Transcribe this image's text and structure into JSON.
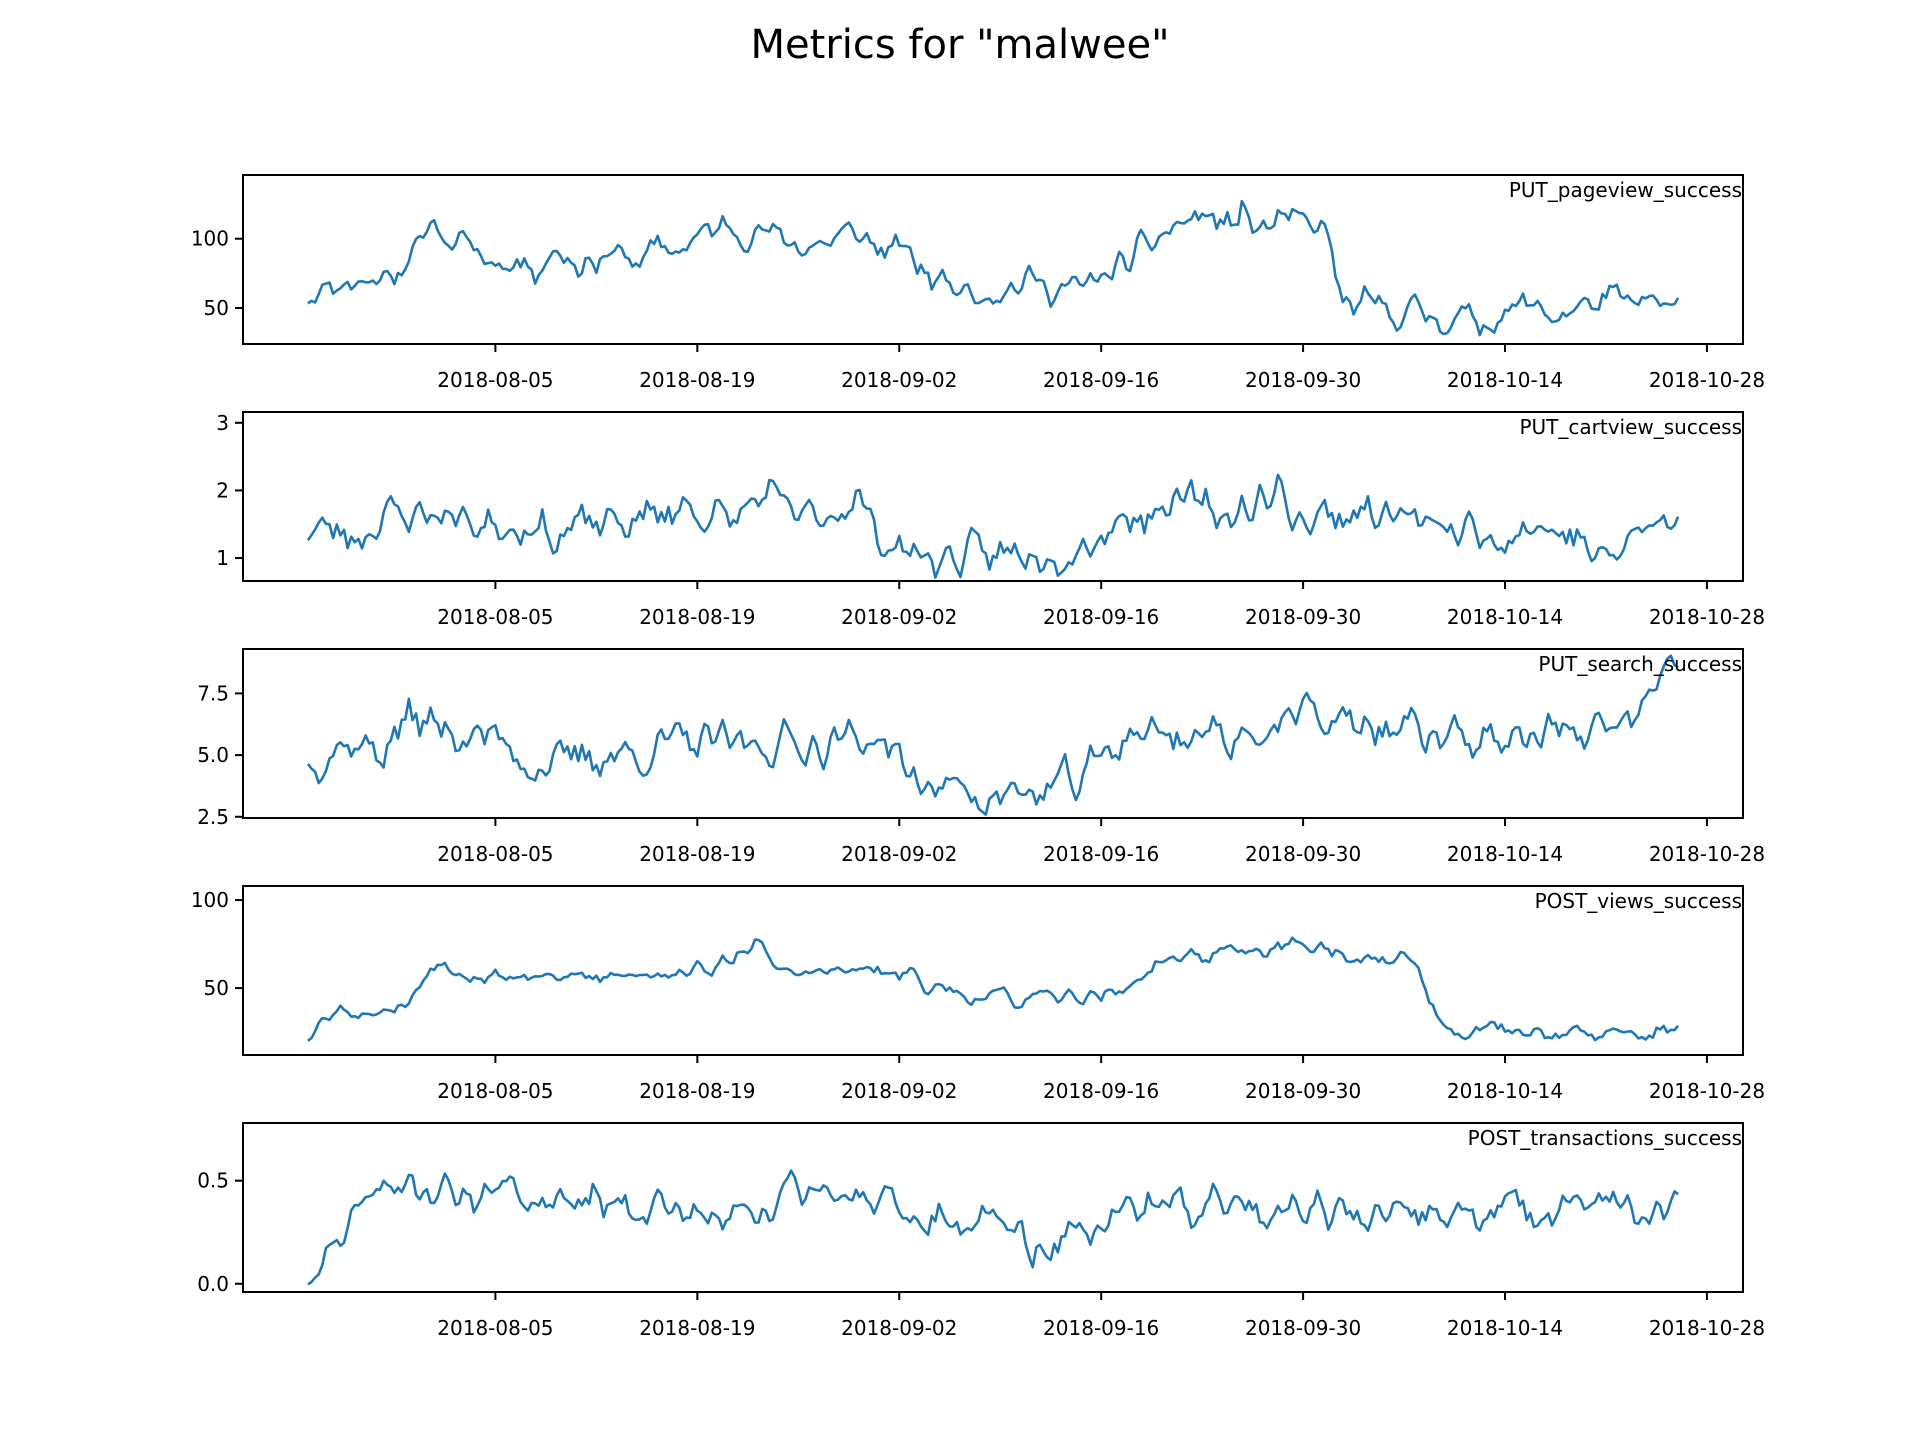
{
  "title": "Metrics for \"malwee\"",
  "line_color": "#1f77b4",
  "chart_data": [
    {
      "type": "line",
      "title": "PUT_pageview_success",
      "xlabel": "",
      "ylabel": "",
      "x_start": "2018-07-23",
      "x_end": "2018-10-26",
      "xlim_days": [
        -4.5,
        99.5
      ],
      "ylim": [
        24,
        146
      ],
      "xticks": [
        "2018-08-05",
        "2018-08-19",
        "2018-09-02",
        "2018-09-16",
        "2018-09-30",
        "2018-10-14",
        "2018-10-28"
      ],
      "yticks": [
        50,
        100
      ],
      "ytick_labels": [
        "50",
        "100"
      ],
      "legend": "top-right",
      "anchors": [
        [
          0,
          62
        ],
        [
          3,
          70
        ],
        [
          5,
          68
        ],
        [
          7,
          80
        ],
        [
          9,
          90
        ],
        [
          10,
          120
        ],
        [
          11,
          100
        ],
        [
          12,
          90
        ],
        [
          13,
          100
        ],
        [
          14,
          85
        ],
        [
          16,
          85
        ],
        [
          18,
          80
        ],
        [
          20,
          92
        ],
        [
          22,
          82
        ],
        [
          24,
          88
        ],
        [
          26,
          85
        ],
        [
          28,
          90
        ],
        [
          30,
          95
        ],
        [
          32,
          103
        ],
        [
          34,
          110
        ],
        [
          36,
          105
        ],
        [
          38,
          100
        ],
        [
          40,
          95
        ],
        [
          42,
          98
        ],
        [
          44,
          105
        ],
        [
          46,
          92
        ],
        [
          48,
          90
        ],
        [
          50,
          72
        ],
        [
          53,
          65
        ],
        [
          56,
          63
        ],
        [
          58,
          70
        ],
        [
          60,
          65
        ],
        [
          62,
          62
        ],
        [
          64,
          75
        ],
        [
          66,
          82
        ],
        [
          68,
          100
        ],
        [
          70,
          110
        ],
        [
          72,
          118
        ],
        [
          74,
          105
        ],
        [
          75,
          125
        ],
        [
          76,
          105
        ],
        [
          78,
          110
        ],
        [
          80,
          112
        ],
        [
          82,
          102
        ],
        [
          83,
          50
        ],
        [
          86,
          50
        ],
        [
          90,
          45
        ],
        [
          94,
          40
        ],
        [
          98,
          52
        ],
        [
          100,
          45
        ],
        [
          104,
          55
        ],
        [
          107,
          53
        ],
        [
          110,
          50
        ]
      ],
      "amplitude": 12,
      "seed": 11
    },
    {
      "type": "line",
      "title": "PUT_cartview_success",
      "xlabel": "",
      "ylabel": "",
      "x_start": "2018-07-23",
      "x_end": "2018-10-26",
      "xlim_days": [
        -4.5,
        99.5
      ],
      "ylim": [
        0.66,
        3.16
      ],
      "xticks": [
        "2018-08-05",
        "2018-08-19",
        "2018-09-02",
        "2018-09-16",
        "2018-09-30",
        "2018-10-14",
        "2018-10-28"
      ],
      "yticks": [
        1,
        2,
        3
      ],
      "ytick_labels": [
        "1",
        "2",
        "3"
      ],
      "legend": "top-right",
      "anchors": [
        [
          0,
          1.45
        ],
        [
          4,
          1.35
        ],
        [
          6,
          1.6
        ],
        [
          10,
          1.7
        ],
        [
          14,
          1.5
        ],
        [
          18,
          1.55
        ],
        [
          20,
          1.3
        ],
        [
          22,
          1.45
        ],
        [
          26,
          1.55
        ],
        [
          28,
          1.6
        ],
        [
          30,
          1.8
        ],
        [
          34,
          1.5
        ],
        [
          36,
          1.9
        ],
        [
          38,
          1.75
        ],
        [
          40,
          1.55
        ],
        [
          42,
          1.7
        ],
        [
          44,
          1.9
        ],
        [
          46,
          1.3
        ],
        [
          48,
          1.1
        ],
        [
          50,
          1.0
        ],
        [
          54,
          1.0
        ],
        [
          58,
          1.1
        ],
        [
          62,
          1.2
        ],
        [
          66,
          1.65
        ],
        [
          70,
          1.8
        ],
        [
          74,
          1.65
        ],
        [
          78,
          1.95
        ],
        [
          80,
          1.55
        ],
        [
          84,
          1.7
        ],
        [
          88,
          1.6
        ],
        [
          90,
          1.45
        ],
        [
          94,
          1.35
        ],
        [
          98,
          1.5
        ],
        [
          102,
          1.3
        ],
        [
          104,
          0.9
        ],
        [
          107,
          1.4
        ],
        [
          110,
          1.5
        ]
      ],
      "amplitude": 0.32,
      "seed": 23
    },
    {
      "type": "line",
      "title": "PUT_search_success",
      "xlabel": "",
      "ylabel": "",
      "x_start": "2018-07-23",
      "x_end": "2018-10-26",
      "xlim_days": [
        -4.5,
        99.5
      ],
      "ylim": [
        2.45,
        9.3
      ],
      "xticks": [
        "2018-08-05",
        "2018-08-19",
        "2018-09-02",
        "2018-09-16",
        "2018-09-30",
        "2018-10-14",
        "2018-10-28"
      ],
      "yticks": [
        2.5,
        5.0,
        7.5
      ],
      "ytick_labels": [
        "2.5",
        "5.0",
        "7.5"
      ],
      "legend": "top-right",
      "anchors": [
        [
          0,
          4.8
        ],
        [
          3,
          5.5
        ],
        [
          6,
          5.2
        ],
        [
          8,
          6.5
        ],
        [
          10,
          6.2
        ],
        [
          13,
          5.8
        ],
        [
          16,
          5.6
        ],
        [
          18,
          4.6
        ],
        [
          20,
          4.5
        ],
        [
          22,
          5.0
        ],
        [
          26,
          5.0
        ],
        [
          30,
          5.5
        ],
        [
          34,
          5.4
        ],
        [
          38,
          5.5
        ],
        [
          42,
          5.5
        ],
        [
          46,
          5.8
        ],
        [
          48,
          4.2
        ],
        [
          50,
          3.8
        ],
        [
          54,
          3.5
        ],
        [
          58,
          3.3
        ],
        [
          62,
          4.0
        ],
        [
          66,
          6.0
        ],
        [
          70,
          5.8
        ],
        [
          74,
          5.8
        ],
        [
          78,
          6.2
        ],
        [
          80,
          6.6
        ],
        [
          84,
          6.2
        ],
        [
          88,
          6.0
        ],
        [
          92,
          5.8
        ],
        [
          96,
          5.6
        ],
        [
          100,
          6.0
        ],
        [
          104,
          5.8
        ],
        [
          108,
          7.2
        ],
        [
          110,
          8.5
        ]
      ],
      "amplitude": 0.9,
      "seed": 37
    },
    {
      "type": "line",
      "title": "POST_views_success",
      "xlabel": "",
      "ylabel": "",
      "x_start": "2018-07-23",
      "x_end": "2018-10-26",
      "xlim_days": [
        -4.5,
        99.5
      ],
      "ylim": [
        12,
        108
      ],
      "xticks": [
        "2018-08-05",
        "2018-08-19",
        "2018-09-02",
        "2018-09-16",
        "2018-09-30",
        "2018-10-14",
        "2018-10-28"
      ],
      "yticks": [
        50,
        100
      ],
      "ytick_labels": [
        "50",
        "100"
      ],
      "legend": "top-right",
      "anchors": [
        [
          0,
          25
        ],
        [
          2,
          38
        ],
        [
          5,
          37
        ],
        [
          8,
          40
        ],
        [
          10,
          65
        ],
        [
          12,
          62
        ],
        [
          14,
          57
        ],
        [
          18,
          57
        ],
        [
          20,
          55
        ],
        [
          24,
          56
        ],
        [
          28,
          60
        ],
        [
          32,
          60
        ],
        [
          34,
          65
        ],
        [
          36,
          80
        ],
        [
          37,
          62
        ],
        [
          40,
          58
        ],
        [
          44,
          60
        ],
        [
          48,
          57
        ],
        [
          52,
          47
        ],
        [
          56,
          44
        ],
        [
          58,
          43
        ],
        [
          62,
          45
        ],
        [
          66,
          50
        ],
        [
          68,
          62
        ],
        [
          70,
          70
        ],
        [
          72,
          68
        ],
        [
          76,
          72
        ],
        [
          80,
          76
        ],
        [
          82,
          70
        ],
        [
          84,
          65
        ],
        [
          86,
          68
        ],
        [
          89,
          65
        ],
        [
          91,
          27
        ],
        [
          96,
          27
        ],
        [
          100,
          25
        ],
        [
          104,
          22
        ],
        [
          108,
          24
        ],
        [
          110,
          30
        ]
      ],
      "amplitude": 5,
      "seed": 53
    },
    {
      "type": "line",
      "title": "POST_transactions_success",
      "xlabel": "",
      "ylabel": "",
      "x_start": "2018-07-23",
      "x_end": "2018-10-26",
      "xlim_days": [
        -4.5,
        99.5
      ],
      "ylim": [
        -0.04,
        0.78
      ],
      "xticks": [
        "2018-08-05",
        "2018-08-19",
        "2018-09-02",
        "2018-09-16",
        "2018-09-30",
        "2018-10-14",
        "2018-10-28"
      ],
      "yticks": [
        0.0,
        0.5
      ],
      "ytick_labels": [
        "0.0",
        "0.5"
      ],
      "legend": "top-right",
      "anchors": [
        [
          0,
          0.0
        ],
        [
          2,
          0.12
        ],
        [
          4,
          0.4
        ],
        [
          8,
          0.48
        ],
        [
          12,
          0.45
        ],
        [
          16,
          0.44
        ],
        [
          20,
          0.42
        ],
        [
          24,
          0.42
        ],
        [
          28,
          0.38
        ],
        [
          32,
          0.3
        ],
        [
          36,
          0.35
        ],
        [
          40,
          0.45
        ],
        [
          44,
          0.45
        ],
        [
          48,
          0.3
        ],
        [
          52,
          0.3
        ],
        [
          56,
          0.3
        ],
        [
          58,
          0.15
        ],
        [
          60,
          0.2
        ],
        [
          64,
          0.3
        ],
        [
          68,
          0.4
        ],
        [
          72,
          0.38
        ],
        [
          76,
          0.38
        ],
        [
          80,
          0.4
        ],
        [
          84,
          0.35
        ],
        [
          88,
          0.3
        ],
        [
          92,
          0.35
        ],
        [
          96,
          0.35
        ],
        [
          100,
          0.38
        ],
        [
          104,
          0.4
        ],
        [
          108,
          0.3
        ],
        [
          110,
          0.35
        ]
      ],
      "amplitude": 0.1,
      "seed": 71
    }
  ]
}
